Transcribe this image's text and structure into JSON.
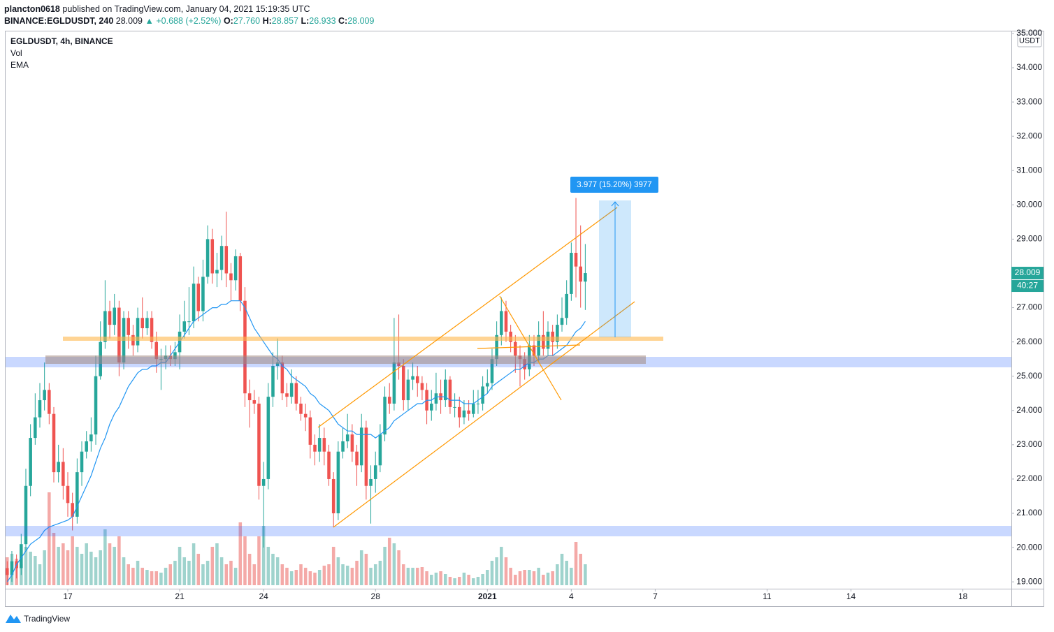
{
  "header": {
    "author": "plancton0618",
    "published": "published on TradingView.com, January 04, 2021 15:19:35 UTC",
    "symbol": "BINANCE:EGLDUSDT, 240",
    "last": "28.009",
    "arrow": "▲",
    "change": "+0.688 (+2.52%)",
    "ohlc": [
      {
        "label": "O:",
        "value": "27.760"
      },
      {
        "label": "H:",
        "value": "28.857"
      },
      {
        "label": "L:",
        "value": "26.933"
      },
      {
        "label": "C:",
        "value": "28.009"
      }
    ]
  },
  "footer": {
    "brand": "TradingView"
  },
  "chart_data": {
    "type": "candlestick",
    "title": "EGLDUSDT, 4h, BINANCE",
    "indicators": [
      "Vol",
      "EMA"
    ],
    "currency": "USDT",
    "last_label": "28.009",
    "countdown": "40:27",
    "measure_label": "3.977 (15.20%) 3977",
    "up_color": "#26a69a",
    "down_color": "#ef5350",
    "vol_up_color": "#9fd3cd",
    "vol_down_color": "#f4a9a7",
    "ema_color": "#2196f3",
    "grid": false,
    "open": [
      19.4,
      19.2,
      19.6,
      19.4,
      20.1,
      21.8,
      23.2,
      23.8,
      24.3,
      24.6,
      23.9,
      22.2,
      22.5,
      21.8,
      21.3,
      20.9,
      22.2,
      22.8,
      23.1,
      23.3,
      25.0,
      26.0,
      26.9,
      26.5,
      27.0,
      25.4,
      26.7,
      26.2,
      25.9,
      26.7,
      26.4,
      26.7,
      26.0,
      25.5,
      25.5,
      25.6,
      25.5,
      25.7,
      26.3,
      26.6,
      26.6,
      27.7,
      26.9,
      27.9,
      29.0,
      28.0,
      28.1,
      28.8,
      28.0,
      27.8,
      28.5,
      27.2,
      24.5,
      24.3,
      24.2,
      21.8,
      22.0,
      24.4,
      25.3,
      25.4,
      24.5,
      24.4,
      24.8,
      24.2,
      23.9,
      23.8,
      23.0,
      22.8,
      23.2,
      22.8,
      22.0,
      21.0,
      22.8,
      23.1,
      23.3,
      22.8,
      22.4,
      23.5,
      21.8,
      22.0,
      22.4,
      23.3,
      24.4,
      24.2,
      25.4,
      25.3,
      24.3,
      24.9,
      25.0,
      24.8,
      24.6,
      24.0,
      24.2,
      24.5,
      24.3,
      24.9,
      24.1,
      24.1,
      23.8,
      24.0,
      23.9,
      24.2,
      24.2,
      24.7,
      24.8,
      25.5,
      26.2,
      26.9,
      26.3,
      26.0,
      25.6,
      25.5,
      25.2,
      25.9,
      25.6,
      26.2,
      25.8,
      26.3,
      26.0,
      26.5,
      26.7,
      27.4,
      28.6,
      28.2,
      27.76
    ],
    "high": [
      19.6,
      19.9,
      19.8,
      20.4,
      22.3,
      23.6,
      24.5,
      24.8,
      25.4,
      24.8,
      24.1,
      23.0,
      22.9,
      22.2,
      21.6,
      22.6,
      23.1,
      23.4,
      23.8,
      25.6,
      26.6,
      27.8,
      27.2,
      27.4,
      27.2,
      26.9,
      26.9,
      26.5,
      27.0,
      27.3,
      26.9,
      26.9,
      26.3,
      25.8,
      25.9,
      25.9,
      26.0,
      26.8,
      27.2,
      27.6,
      28.2,
      27.9,
      28.4,
      29.4,
      29.3,
      28.6,
      29.1,
      29.8,
      28.3,
      28.7,
      28.6,
      27.6,
      24.9,
      24.6,
      24.4,
      22.5,
      24.8,
      25.7,
      26.1,
      25.6,
      24.8,
      25.2,
      25.0,
      24.4,
      24.2,
      24.0,
      23.3,
      23.6,
      23.5,
      23.0,
      22.2,
      23.1,
      23.5,
      23.9,
      23.6,
      23.0,
      23.9,
      23.7,
      22.4,
      22.8,
      23.6,
      24.7,
      24.8,
      26.7,
      26.8,
      25.5,
      25.2,
      25.4,
      25.3,
      25.0,
      24.8,
      24.6,
      25.1,
      24.9,
      25.2,
      25.0,
      24.5,
      24.4,
      24.3,
      24.3,
      24.6,
      24.6,
      25.0,
      25.2,
      25.8,
      26.6,
      27.3,
      27.2,
      26.5,
      26.2,
      25.9,
      25.7,
      26.2,
      26.2,
      26.6,
      26.9,
      26.6,
      26.5,
      26.8,
      27.3,
      27.8,
      28.9,
      30.2,
      29.4,
      28.857
    ],
    "low": [
      18.9,
      19.0,
      19.1,
      19.2,
      19.9,
      21.5,
      23.0,
      23.5,
      24.0,
      23.6,
      21.9,
      21.9,
      21.4,
      20.9,
      20.5,
      20.7,
      21.8,
      22.6,
      22.8,
      23.0,
      24.9,
      25.8,
      26.1,
      26.2,
      25.0,
      25.2,
      25.8,
      25.6,
      25.7,
      26.1,
      26.2,
      25.8,
      25.1,
      24.6,
      25.2,
      25.3,
      25.3,
      25.2,
      26.1,
      26.2,
      26.4,
      26.6,
      26.6,
      27.7,
      27.7,
      27.6,
      27.8,
      27.6,
      27.2,
      27.5,
      26.9,
      24.1,
      23.5,
      23.9,
      21.4,
      20.0,
      21.7,
      24.1,
      24.9,
      24.3,
      24.1,
      24.2,
      24.0,
      23.7,
      23.4,
      22.6,
      22.4,
      22.5,
      22.4,
      21.8,
      20.6,
      20.8,
      22.6,
      22.9,
      22.5,
      21.8,
      22.2,
      21.4,
      20.7,
      21.6,
      22.2,
      23.1,
      23.9,
      24.0,
      24.9,
      24.0,
      24.0,
      24.6,
      24.4,
      24.3,
      23.6,
      23.7,
      24.0,
      23.9,
      24.1,
      23.9,
      23.8,
      23.5,
      23.6,
      23.7,
      23.8,
      23.9,
      24.0,
      24.5,
      24.6,
      25.3,
      25.9,
      26.0,
      25.7,
      25.1,
      24.7,
      24.9,
      25.0,
      25.3,
      25.4,
      25.6,
      25.6,
      25.6,
      25.8,
      26.3,
      26.5,
      27.2,
      27.3,
      27.0,
      26.933
    ],
    "close": [
      19.2,
      19.6,
      19.4,
      20.1,
      21.8,
      23.2,
      23.8,
      24.3,
      24.6,
      23.9,
      22.2,
      22.5,
      21.8,
      21.3,
      20.9,
      22.2,
      22.8,
      23.1,
      23.3,
      25.0,
      26.0,
      26.9,
      26.5,
      27.0,
      25.4,
      26.7,
      26.2,
      25.9,
      26.7,
      26.4,
      26.7,
      26.0,
      25.5,
      25.5,
      25.6,
      25.5,
      25.7,
      26.3,
      26.6,
      26.6,
      27.7,
      26.9,
      27.9,
      29.0,
      28.0,
      28.1,
      28.8,
      28.0,
      27.8,
      28.5,
      27.2,
      24.5,
      24.3,
      24.2,
      21.8,
      22.0,
      24.4,
      25.3,
      25.4,
      24.5,
      24.4,
      24.8,
      24.2,
      23.9,
      23.8,
      23.0,
      22.8,
      23.2,
      22.8,
      22.0,
      21.0,
      22.8,
      23.1,
      23.3,
      22.8,
      22.4,
      23.5,
      21.8,
      22.0,
      22.4,
      23.3,
      24.4,
      24.2,
      25.4,
      25.3,
      24.3,
      24.9,
      25.0,
      24.8,
      24.6,
      24.0,
      24.2,
      24.5,
      24.3,
      24.9,
      24.1,
      24.1,
      23.8,
      24.0,
      23.9,
      24.2,
      24.2,
      24.7,
      24.8,
      25.5,
      26.2,
      26.9,
      26.3,
      26.0,
      25.6,
      25.5,
      25.2,
      25.9,
      25.6,
      26.2,
      25.8,
      26.3,
      26.0,
      26.5,
      26.7,
      27.4,
      28.6,
      28.2,
      27.76,
      28.009
    ],
    "volume": [
      40,
      45,
      38,
      30,
      55,
      48,
      42,
      30,
      50,
      133,
      75,
      55,
      60,
      50,
      70,
      55,
      45,
      60,
      48,
      40,
      50,
      80,
      60,
      55,
      70,
      40,
      30,
      25,
      35,
      25,
      22,
      20,
      20,
      18,
      25,
      30,
      35,
      55,
      40,
      35,
      60,
      45,
      30,
      35,
      55,
      60,
      40,
      30,
      35,
      25,
      90,
      70,
      45,
      30,
      70,
      85,
      55,
      45,
      40,
      30,
      25,
      20,
      22,
      30,
      25,
      20,
      18,
      22,
      28,
      30,
      55,
      40,
      30,
      28,
      25,
      35,
      50,
      45,
      25,
      30,
      35,
      55,
      68,
      60,
      50,
      30,
      25,
      25,
      25,
      26,
      20,
      15,
      18,
      20,
      16,
      12,
      10,
      12,
      18,
      15,
      10,
      12,
      16,
      22,
      35,
      40,
      55,
      40,
      25,
      15,
      20,
      22,
      22,
      20,
      25,
      15,
      18,
      20,
      30,
      45,
      35,
      25,
      62,
      45,
      30
    ],
    "ema": [
      19.0,
      19.2,
      19.5,
      19.7,
      19.9,
      20.1,
      20.2,
      20.3,
      20.5,
      20.6,
      20.65,
      20.7,
      20.75,
      20.8,
      20.9,
      21.2,
      21.5,
      21.8,
      22.1,
      22.5,
      22.9,
      23.2,
      23.6,
      23.9,
      24.1,
      24.4,
      24.7,
      24.9,
      25.1,
      25.2,
      25.2,
      25.3,
      25.3,
      25.4,
      25.4,
      25.6,
      25.8,
      26.0,
      26.2,
      26.4,
      26.6,
      26.7,
      26.8,
      26.9,
      27.0,
      27.0,
      27.1,
      27.1,
      27.2,
      27.2,
      27.2,
      27.0,
      26.7,
      26.4,
      26.2,
      26.0,
      25.8,
      25.6,
      25.5,
      25.3,
      25.2,
      25.0,
      24.9,
      24.8,
      24.7,
      24.5,
      24.4,
      24.2,
      24.1,
      24.0,
      23.8,
      23.6,
      23.5,
      23.4,
      23.4,
      23.3,
      23.3,
      23.3,
      23.3,
      23.2,
      23.3,
      23.4,
      23.5,
      23.7,
      23.8,
      23.9,
      24.0,
      24.1,
      24.2,
      24.2,
      24.3,
      24.3,
      24.4,
      24.4,
      24.4,
      24.3,
      24.3,
      24.3,
      24.2,
      24.2,
      24.2,
      24.3,
      24.4,
      24.5,
      24.7,
      24.8,
      24.9,
      25.0,
      25.1,
      25.2,
      25.2,
      25.3,
      25.4,
      25.4,
      25.5,
      25.5,
      25.6,
      25.6,
      25.7,
      25.8,
      25.9,
      26.1,
      26.3,
      26.4,
      26.6
    ],
    "xlim": [
      -0.345,
      215.4
    ],
    "xticks": [
      {
        "value": 13,
        "label": "17"
      },
      {
        "value": 37,
        "label": "21"
      },
      {
        "value": 55,
        "label": "24"
      },
      {
        "value": 79,
        "label": "28"
      },
      {
        "value": 103,
        "label": "2021"
      },
      {
        "value": 121,
        "label": "4"
      },
      {
        "value": 139,
        "label": "7"
      },
      {
        "value": 163,
        "label": "11"
      },
      {
        "value": 181,
        "label": "14"
      },
      {
        "value": 205,
        "label": "18"
      }
    ],
    "ylim": [
      18.8,
      35.08
    ],
    "yticks": [
      {
        "value": 19,
        "label": "19.000"
      },
      {
        "value": 20,
        "label": "20.000"
      },
      {
        "value": 21,
        "label": "21.000"
      },
      {
        "value": 22,
        "label": "22.000"
      },
      {
        "value": 23,
        "label": "23.000"
      },
      {
        "value": 24,
        "label": "24.000"
      },
      {
        "value": 25,
        "label": "25.000"
      },
      {
        "value": 26,
        "label": "26.000"
      },
      {
        "value": 27,
        "label": "27.000"
      },
      {
        "value": 28,
        "label": "28.000"
      },
      {
        "value": 29,
        "label": "29.000"
      },
      {
        "value": 30,
        "label": "30.000"
      },
      {
        "value": 31,
        "label": "31.000"
      },
      {
        "value": 32,
        "label": "32.000"
      },
      {
        "value": 33,
        "label": "33.000"
      },
      {
        "value": 34,
        "label": "34.000"
      },
      {
        "value": 35,
        "label": "35.000"
      }
    ],
    "vol_ylim": [
      0,
      140
    ]
  }
}
